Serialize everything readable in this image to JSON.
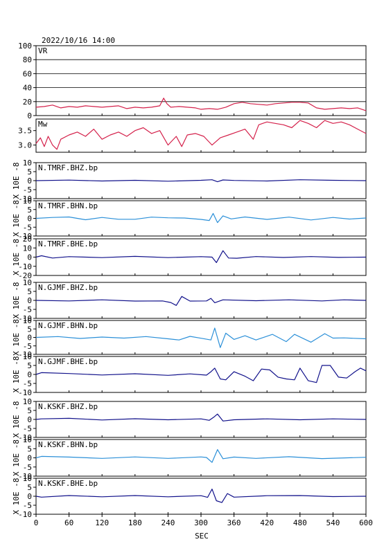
{
  "timestamp": "2022/10/16  14:00",
  "xlabel": "SEC",
  "x_ticks": [
    0,
    60,
    120,
    180,
    240,
    300,
    360,
    420,
    480,
    540,
    600
  ],
  "xlim": [
    0,
    600
  ],
  "colors": {
    "vr_mw": "#d4204a",
    "dark_trace": "#10108a",
    "light_trace": "#2a8fd8"
  },
  "chart_data": [
    {
      "type": "line",
      "panel": "vr",
      "label": "VR",
      "ylim": [
        0,
        100
      ],
      "y_ticks": [
        0,
        20,
        40,
        60,
        80,
        100
      ],
      "grid": true,
      "series": [
        {
          "x": [
            0,
            15,
            30,
            45,
            60,
            75,
            90,
            105,
            120,
            135,
            150,
            165,
            180,
            195,
            210,
            225,
            232,
            238,
            245,
            260,
            275,
            290,
            300,
            315,
            330,
            345,
            360,
            375,
            390,
            405,
            420,
            435,
            450,
            465,
            480,
            495,
            510,
            525,
            540,
            555,
            570,
            585,
            600
          ],
          "y": [
            12,
            13,
            15,
            11,
            13,
            12,
            14,
            13,
            12,
            13,
            14,
            10,
            12,
            11,
            12,
            14,
            25,
            17,
            12,
            13,
            12,
            11,
            9,
            10,
            9,
            12,
            17,
            19,
            17,
            16,
            15,
            17,
            18,
            19,
            19,
            18,
            11,
            9,
            10,
            11,
            10,
            11,
            7
          ]
        }
      ]
    },
    {
      "type": "line",
      "panel": "mw",
      "label": "Mw",
      "ylim": [
        2.75,
        3.9
      ],
      "y_ticks": [
        3.0,
        3.5
      ],
      "y_tick_labels": [
        "3.0",
        "3.5"
      ],
      "grid": false,
      "series": [
        {
          "x": [
            0,
            8,
            15,
            22,
            30,
            38,
            45,
            60,
            75,
            90,
            105,
            120,
            135,
            150,
            165,
            180,
            195,
            210,
            225,
            240,
            255,
            265,
            275,
            290,
            305,
            320,
            335,
            350,
            365,
            380,
            395,
            405,
            420,
            435,
            450,
            465,
            480,
            495,
            510,
            525,
            540,
            555,
            570,
            585,
            600
          ],
          "y": [
            3.05,
            3.25,
            2.95,
            3.3,
            3.0,
            2.85,
            3.2,
            3.35,
            3.45,
            3.3,
            3.55,
            3.2,
            3.35,
            3.45,
            3.3,
            3.5,
            3.6,
            3.4,
            3.5,
            3.0,
            3.3,
            2.95,
            3.35,
            3.4,
            3.3,
            3.0,
            3.25,
            3.35,
            3.45,
            3.55,
            3.2,
            3.7,
            3.8,
            3.75,
            3.7,
            3.6,
            3.85,
            3.75,
            3.6,
            3.85,
            3.75,
            3.8,
            3.7,
            3.55,
            3.4
          ]
        }
      ]
    },
    {
      "type": "line",
      "panel": "trace",
      "label": "N.TMRF.BHZ.bp",
      "trace_style": "dark",
      "ylabel": "X 10E -8",
      "ylim": [
        -10,
        10
      ],
      "y_ticks": [
        -10,
        -5,
        0,
        5,
        10
      ],
      "series": [
        {
          "x": [
            0,
            60,
            120,
            180,
            240,
            300,
            320,
            330,
            340,
            360,
            420,
            480,
            540,
            600
          ],
          "y": [
            0,
            0.3,
            -0.2,
            0.2,
            -0.3,
            0.2,
            0.5,
            -0.6,
            0.4,
            0.1,
            -0.2,
            0.5,
            0.2,
            0
          ]
        }
      ]
    },
    {
      "type": "line",
      "panel": "trace",
      "label": "N.TMRF.BHN.bp",
      "trace_style": "light",
      "ylabel": "X 10E -8",
      "ylim": [
        -10,
        10
      ],
      "y_ticks": [
        -10,
        -5,
        0,
        5,
        10
      ],
      "series": [
        {
          "x": [
            0,
            30,
            60,
            90,
            120,
            150,
            180,
            210,
            240,
            270,
            300,
            315,
            322,
            330,
            340,
            355,
            380,
            420,
            460,
            500,
            540,
            570,
            600
          ],
          "y": [
            0,
            0.5,
            0.8,
            -0.8,
            0.5,
            -0.5,
            -0.5,
            0.7,
            0.3,
            0.2,
            -0.6,
            -1.2,
            2.8,
            -2.4,
            1.4,
            -0.3,
            0.8,
            -0.6,
            0.7,
            -0.9,
            0.5,
            -0.4,
            0.2
          ]
        }
      ]
    },
    {
      "type": "line",
      "panel": "trace",
      "label": "N.TMRF.BHE.bp",
      "trace_style": "dark",
      "ylabel": "X 10E -8",
      "ylim": [
        -20,
        20
      ],
      "y_ticks": [
        -20,
        -10,
        0,
        10,
        20
      ],
      "series": [
        {
          "x": [
            0,
            10,
            30,
            60,
            120,
            180,
            240,
            300,
            320,
            328,
            340,
            350,
            365,
            400,
            450,
            500,
            550,
            600
          ],
          "y": [
            0,
            1.5,
            -1,
            0.5,
            -0.5,
            0.8,
            -0.5,
            0.5,
            0,
            -6,
            7,
            -1,
            -1.2,
            0.6,
            -0.4,
            0.6,
            -0.3,
            0
          ]
        }
      ]
    },
    {
      "type": "line",
      "panel": "trace",
      "label": "N.GJMF.BHZ.bp",
      "trace_style": "dark",
      "ylabel": "X 10E -8",
      "ylim": [
        -10,
        10
      ],
      "y_ticks": [
        -10,
        -5,
        0,
        5,
        10
      ],
      "series": [
        {
          "x": [
            0,
            60,
            120,
            180,
            230,
            245,
            255,
            265,
            280,
            310,
            318,
            325,
            340,
            400,
            460,
            520,
            560,
            600
          ],
          "y": [
            0,
            -0.3,
            0.3,
            -0.4,
            -0.3,
            -1.2,
            -2.8,
            2.2,
            -0.4,
            -0.3,
            1.1,
            -1.3,
            0.3,
            -0.2,
            0.3,
            -0.3,
            0.3,
            0
          ]
        }
      ]
    },
    {
      "type": "line",
      "panel": "trace",
      "label": "N.GJMF.BHN.bp",
      "trace_style": "light",
      "ylabel": "X 10E -8",
      "ylim": [
        -10,
        10
      ],
      "y_ticks": [
        -10,
        -5,
        0,
        5,
        10
      ],
      "series": [
        {
          "x": [
            0,
            40,
            80,
            120,
            160,
            200,
            240,
            260,
            280,
            300,
            318,
            325,
            335,
            345,
            360,
            380,
            400,
            430,
            455,
            470,
            500,
            525,
            540,
            560,
            600
          ],
          "y": [
            0,
            0.5,
            -0.6,
            0.2,
            -0.4,
            0.5,
            -0.8,
            -1.5,
            0.6,
            -0.5,
            -1.5,
            5.5,
            -6,
            2.5,
            -1.2,
            1.0,
            -1.5,
            1.8,
            -2.5,
            1.8,
            -2.8,
            2.2,
            -0.4,
            -0.3,
            -0.8
          ]
        }
      ]
    },
    {
      "type": "line",
      "panel": "trace",
      "label": "N.GJMF.BHE.bp",
      "trace_style": "dark",
      "ylabel": "X 10E -8",
      "ylim": [
        -10,
        10
      ],
      "y_ticks": [
        -10,
        -5,
        0,
        5,
        10
      ],
      "series": [
        {
          "x": [
            0,
            10,
            60,
            120,
            180,
            240,
            280,
            310,
            318,
            325,
            335,
            345,
            360,
            380,
            395,
            410,
            425,
            440,
            455,
            470,
            480,
            495,
            510,
            520,
            535,
            550,
            565,
            580,
            590,
            600
          ],
          "y": [
            0,
            1,
            0.5,
            -0.3,
            0.4,
            -0.5,
            0.3,
            -0.4,
            1.5,
            3.5,
            -2.5,
            -3,
            1.5,
            -1,
            -3.5,
            3,
            2.5,
            -1.5,
            -2.5,
            -3,
            3.5,
            -3.5,
            -4.5,
            5,
            5,
            -1.5,
            -2,
            1.5,
            3.5,
            2
          ]
        }
      ]
    },
    {
      "type": "line",
      "panel": "trace",
      "label": "N.KSKF.BHZ.bp",
      "trace_style": "dark",
      "ylabel": "X 10E -8",
      "ylim": [
        -10,
        10
      ],
      "y_ticks": [
        -10,
        -5,
        0,
        5,
        10
      ],
      "series": [
        {
          "x": [
            0,
            10,
            60,
            120,
            180,
            240,
            300,
            315,
            323,
            330,
            340,
            360,
            420,
            480,
            540,
            600
          ],
          "y": [
            0,
            0.3,
            0.6,
            -0.3,
            0.4,
            -0.2,
            0.3,
            -0.5,
            1.2,
            3,
            -0.9,
            -0.2,
            0.3,
            -0.2,
            0.3,
            0
          ]
        }
      ]
    },
    {
      "type": "line",
      "panel": "trace",
      "label": "N.KSKF.BHN.bp",
      "trace_style": "light",
      "ylabel": "X 10E -8",
      "ylim": [
        -10,
        10
      ],
      "y_ticks": [
        -10,
        -5,
        0,
        5,
        10
      ],
      "series": [
        {
          "x": [
            0,
            10,
            60,
            120,
            180,
            240,
            300,
            310,
            320,
            330,
            340,
            360,
            400,
            460,
            520,
            600
          ],
          "y": [
            0,
            0.8,
            0.4,
            -0.3,
            0.5,
            -0.3,
            0.5,
            0.2,
            -2.5,
            4.5,
            -0.5,
            0.4,
            -0.3,
            0.6,
            -0.4,
            0.3
          ]
        }
      ]
    },
    {
      "type": "line",
      "panel": "trace",
      "label": "N.KSKF.BHE.bp",
      "trace_style": "dark",
      "ylabel": "X 10E -8",
      "ylim": [
        -10,
        10
      ],
      "y_ticks": [
        -10,
        -5,
        0,
        5,
        10
      ],
      "series": [
        {
          "x": [
            0,
            10,
            60,
            120,
            180,
            240,
            300,
            312,
            320,
            328,
            338,
            348,
            360,
            420,
            480,
            540,
            600
          ],
          "y": [
            0,
            -0.5,
            0.4,
            -0.3,
            0.4,
            -0.3,
            0.3,
            -0.6,
            4,
            -2.5,
            -3.5,
            1.5,
            -0.5,
            0.3,
            0.4,
            -0.2,
            0
          ]
        }
      ]
    }
  ]
}
